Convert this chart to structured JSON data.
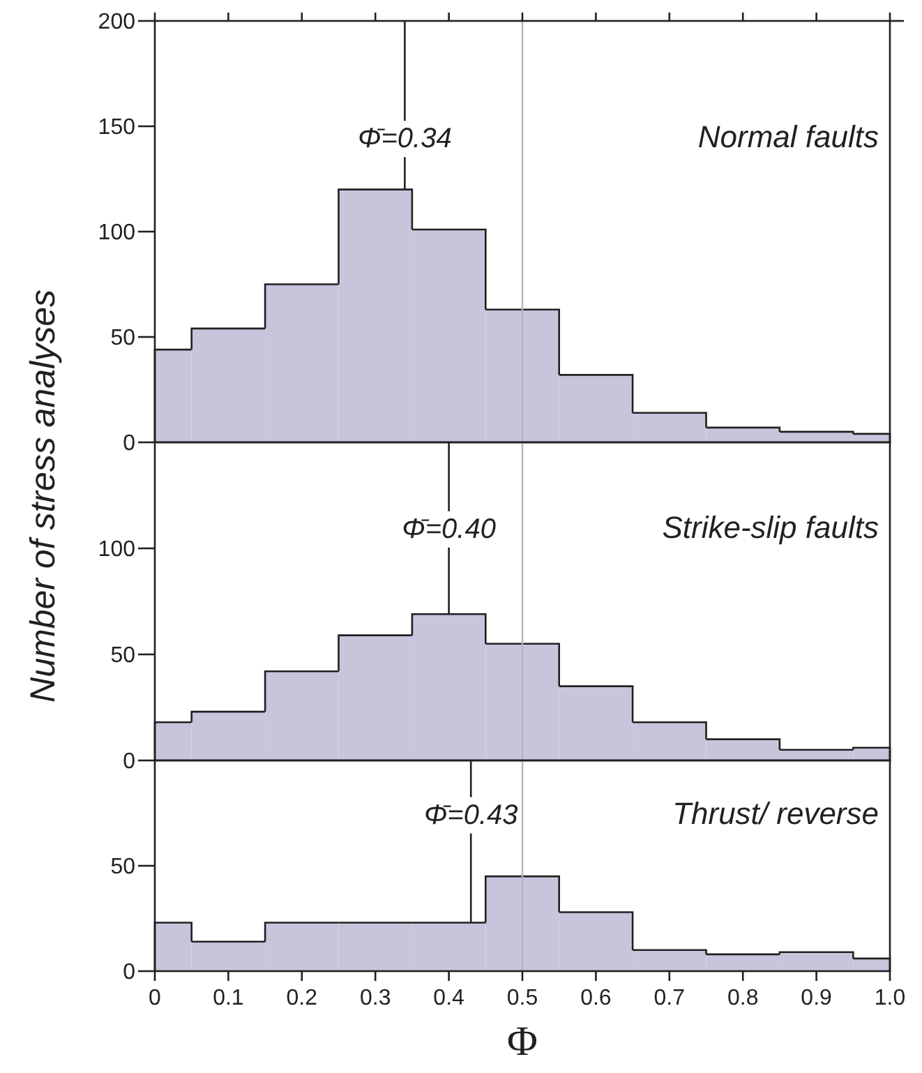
{
  "chart_data": [
    {
      "type": "histogram",
      "bins": [
        0,
        0.05,
        0.15,
        0.25,
        0.35,
        0.45,
        0.55,
        0.65,
        0.75,
        0.85,
        0.95,
        1.0
      ],
      "values": [
        44,
        54,
        75,
        120,
        101,
        63,
        32,
        14,
        7,
        5,
        4
      ],
      "color": "#c8c4dc",
      "xlim": [
        0,
        1.0
      ],
      "ylim": [
        0,
        200
      ],
      "yticks": [
        0,
        50,
        100,
        150,
        200
      ],
      "tick_labels": "y",
      "annotations": [
        "Normal faults"
      ],
      "ref_lines": [
        {
          "axis": "x",
          "value": 0.34,
          "label": "Φ̄=0.34",
          "color": "#231f20"
        },
        {
          "axis": "x",
          "value": 0.5,
          "label": null,
          "color": "#b4b4c4"
        }
      ]
    },
    {
      "type": "histogram",
      "bins": [
        0,
        0.05,
        0.15,
        0.25,
        0.35,
        0.45,
        0.55,
        0.65,
        0.75,
        0.85,
        0.95,
        1.0
      ],
      "values": [
        18,
        23,
        42,
        59,
        69,
        55,
        35,
        18,
        10,
        5,
        6
      ],
      "color": "#c8c4dc",
      "xlim": [
        0,
        1.0
      ],
      "ylim": [
        0,
        150
      ],
      "yticks": [
        0,
        50,
        100
      ],
      "tick_labels": "y",
      "ylabel": "Number of stress analyses",
      "annotations": [
        "Strike-slip faults"
      ],
      "ref_lines": [
        {
          "axis": "x",
          "value": 0.4,
          "label": "Φ̄=0.40",
          "color": "#231f20"
        },
        {
          "axis": "x",
          "value": 0.5,
          "label": null,
          "color": "#b4b4c4"
        }
      ]
    },
    {
      "type": "histogram",
      "bins": [
        0,
        0.05,
        0.15,
        0.25,
        0.35,
        0.45,
        0.55,
        0.65,
        0.75,
        0.85,
        0.95,
        1.0
      ],
      "values": [
        23,
        14,
        23,
        23,
        23,
        45,
        28,
        10,
        8,
        9,
        6
      ],
      "color": "#c8c4dc",
      "xlim": [
        0,
        1.0
      ],
      "xticks": [
        0,
        {
          "value": 0.1,
          "label": "0.1"
        },
        {
          "value": 0.2,
          "label": "0.2"
        },
        {
          "value": 0.3,
          "label": "0.3"
        },
        {
          "value": 0.4,
          "label": "0.4"
        },
        {
          "value": 0.5,
          "label": "0.5"
        },
        {
          "value": 0.6,
          "label": "0.6"
        },
        {
          "value": 0.7,
          "label": "0.7"
        },
        {
          "value": 0.8,
          "label": "0.8"
        },
        {
          "value": 0.9,
          "label": "0.9"
        },
        {
          "value": 1.0,
          "label": "1.0"
        }
      ],
      "ylim": [
        0,
        100
      ],
      "yticks": [
        0,
        50
      ],
      "xlabel": "Φ",
      "annotations": [
        "Thrust/ reverse"
      ],
      "ref_lines": [
        {
          "axis": "x",
          "value": 0.43,
          "label": "Φ̄=0.43",
          "color": "#231f20"
        },
        {
          "axis": "x",
          "value": 0.5,
          "label": null,
          "color": "#b4b4c4"
        }
      ]
    }
  ]
}
